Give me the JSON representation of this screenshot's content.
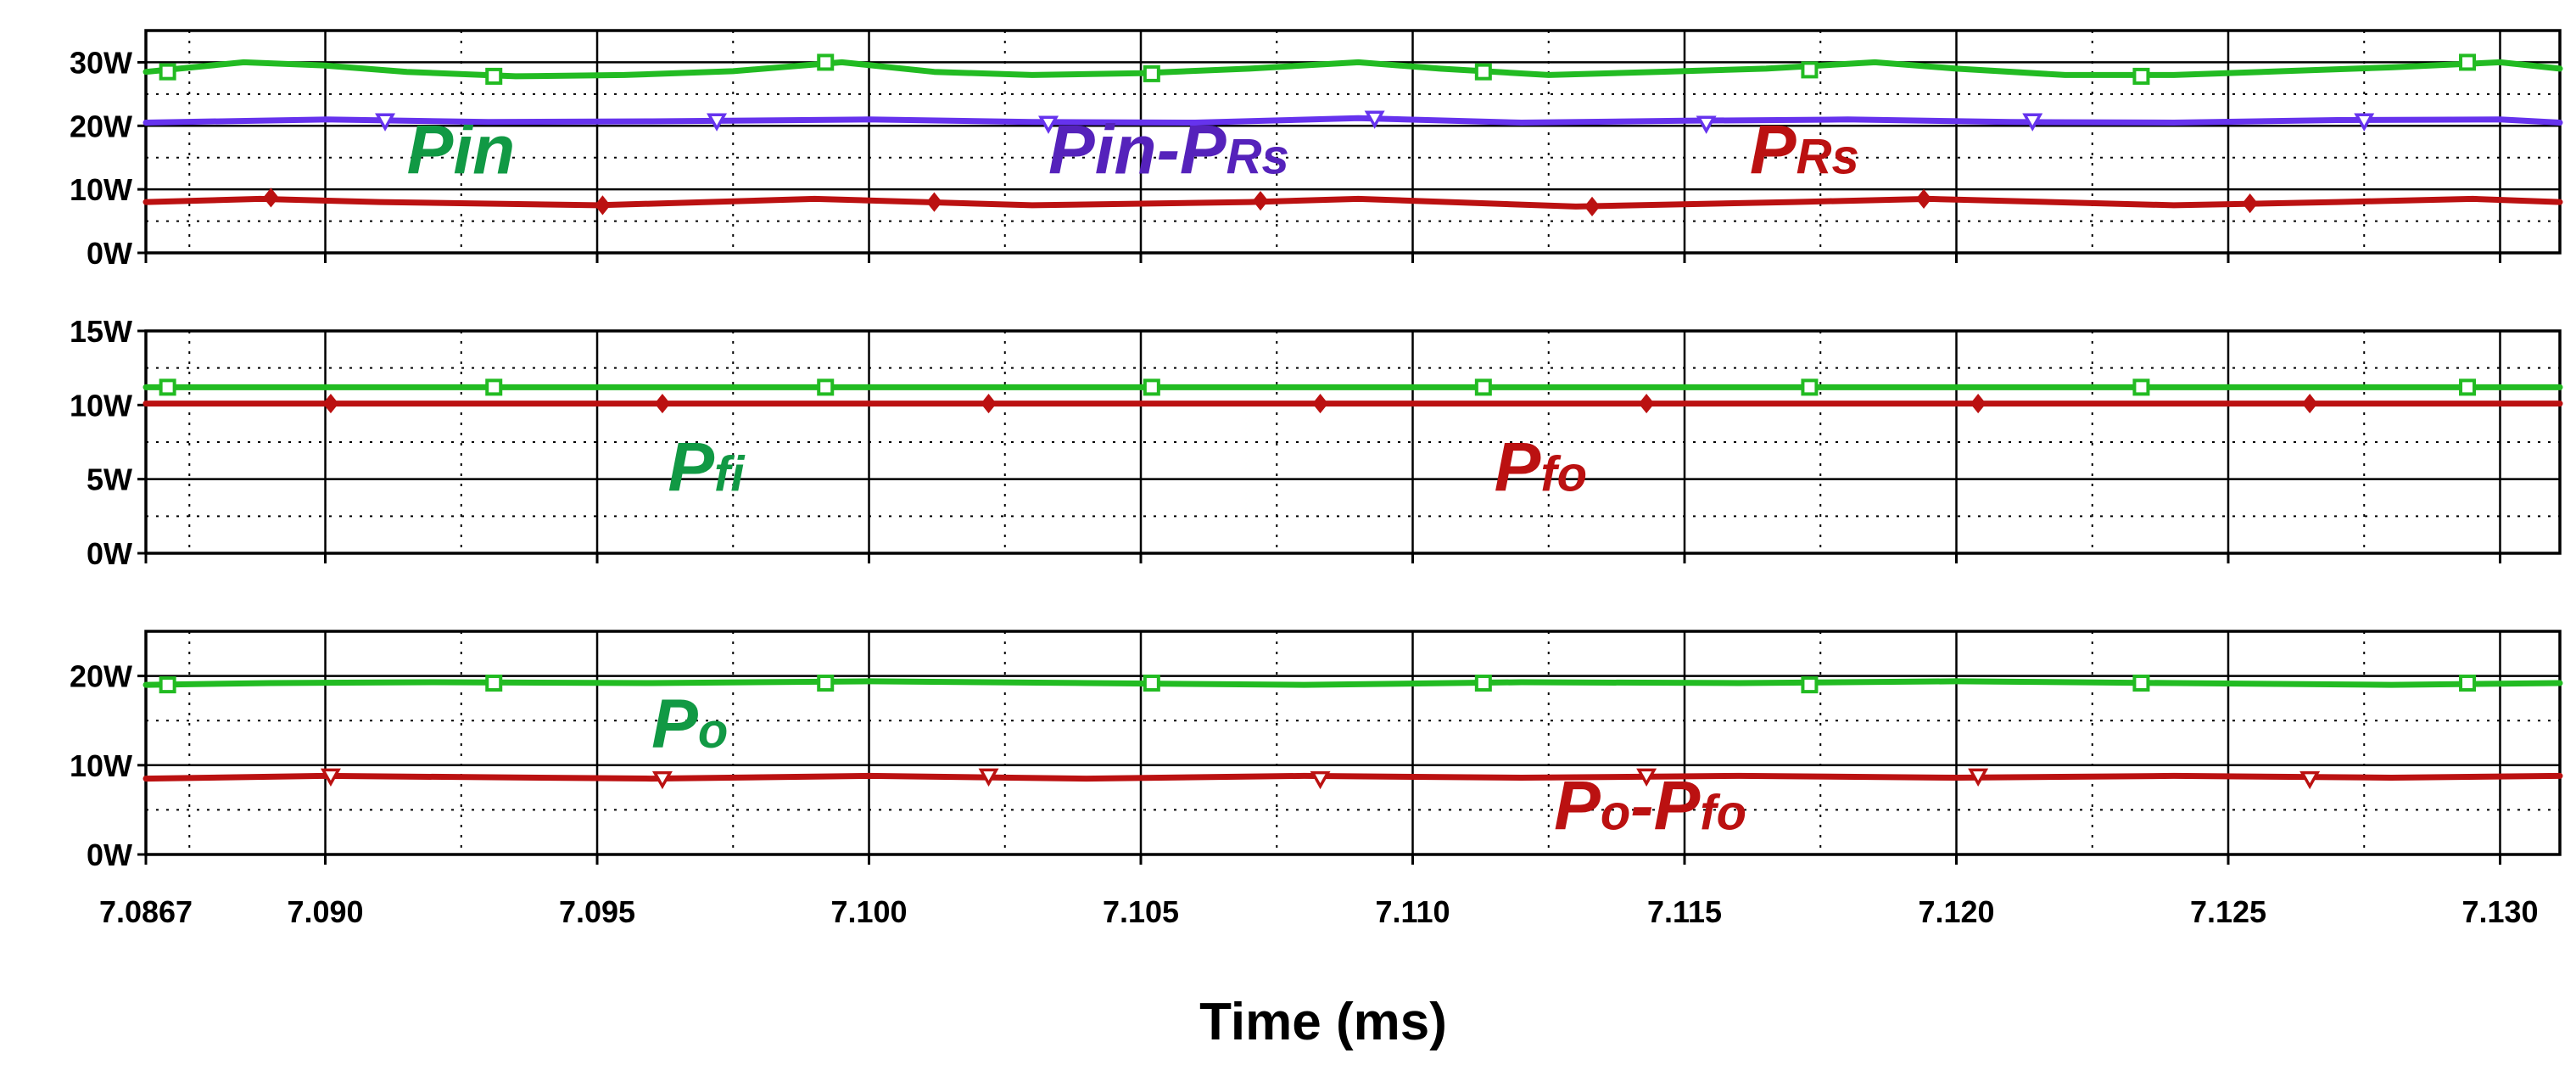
{
  "colors": {
    "green": "#22bb22",
    "purple": "#6633ee",
    "red": "#bb1111",
    "label_green": "#119944",
    "label_purple": "#5522bb",
    "label_red": "#bb1111"
  },
  "chart_data": {
    "type": "line",
    "xlabel": "Time (ms)",
    "xlim": [
      7.0867,
      7.1311
    ],
    "x_ticks": [
      {
        "value": 7.0867,
        "label": "7.0867"
      },
      {
        "value": 7.09,
        "label": "7.090"
      },
      {
        "value": 7.095,
        "label": "7.095"
      },
      {
        "value": 7.1,
        "label": "7.100"
      },
      {
        "value": 7.105,
        "label": "7.105"
      },
      {
        "value": 7.11,
        "label": "7.110"
      },
      {
        "value": 7.115,
        "label": "7.115"
      },
      {
        "value": 7.12,
        "label": "7.120"
      },
      {
        "value": 7.125,
        "label": "7.125"
      },
      {
        "value": 7.13,
        "label": "7.130"
      }
    ],
    "grid": true,
    "panels": [
      {
        "id": "top",
        "ylim": [
          0,
          35
        ],
        "y_ticks": [
          {
            "value": 0,
            "label": "0W"
          },
          {
            "value": 10,
            "label": "10W"
          },
          {
            "value": 20,
            "label": "20W"
          },
          {
            "value": 30,
            "label": "30W"
          }
        ],
        "series": [
          {
            "name": "Pin",
            "label_parts": [
              {
                "t": "Pin",
                "sub": false
              }
            ],
            "color": "green",
            "marker": "square",
            "label_color": "label_green",
            "label_pos": [
              7.0915,
              12.5
            ],
            "x": [
              7.0867,
              7.0885,
              7.09,
              7.0915,
              7.0935,
              7.0955,
              7.0975,
              7.0995,
              7.1012,
              7.103,
              7.105,
              7.107,
              7.109,
              7.1105,
              7.1125,
              7.1145,
              7.1165,
              7.1185,
              7.12,
              7.122,
              7.124,
              7.126,
              7.128,
              7.13,
              7.1311
            ],
            "y": [
              28.5,
              30.0,
              29.5,
              28.5,
              27.8,
              28.0,
              28.6,
              30.0,
              28.5,
              28.0,
              28.3,
              29.0,
              30.0,
              29.0,
              28.0,
              28.5,
              29.0,
              30.0,
              29.0,
              28.0,
              28.0,
              28.6,
              29.2,
              30.0,
              29.0
            ],
            "markers_x": [
              7.0871,
              7.0931,
              7.0992,
              7.1052,
              7.1113,
              7.1173,
              7.1234,
              7.1294
            ],
            "markers_y": [
              28.5,
              27.8,
              30.0,
              28.2,
              28.5,
              28.8,
              27.8,
              30.0
            ]
          },
          {
            "name": "Pin-PRs",
            "label_parts": [
              {
                "t": "Pin-P",
                "sub": false
              },
              {
                "t": "Rs",
                "sub": true
              }
            ],
            "color": "purple",
            "marker": "triangle-down",
            "label_color": "label_purple",
            "label_pos": [
              7.1033,
              12.5
            ],
            "x": [
              7.0867,
              7.09,
              7.093,
              7.096,
              7.1,
              7.103,
              7.106,
              7.109,
              7.112,
              7.115,
              7.118,
              7.121,
              7.124,
              7.127,
              7.13,
              7.1311
            ],
            "y": [
              20.5,
              21.0,
              20.6,
              20.7,
              21.0,
              20.6,
              20.5,
              21.2,
              20.5,
              20.8,
              21.0,
              20.6,
              20.5,
              20.9,
              21.0,
              20.5
            ],
            "markers_x": [
              7.0911,
              7.0972,
              7.1033,
              7.1093,
              7.1154,
              7.1214,
              7.1275
            ],
            "markers_y": [
              20.8,
              20.8,
              20.4,
              21.2,
              20.4,
              20.8,
              20.8
            ]
          },
          {
            "name": "PRs",
            "label_parts": [
              {
                "t": "P",
                "sub": false
              },
              {
                "t": "Rs",
                "sub": true
              }
            ],
            "color": "red",
            "marker": "diamond",
            "label_color": "label_red",
            "label_pos": [
              7.1162,
              12.5
            ],
            "x": [
              7.0867,
              7.0888,
              7.091,
              7.095,
              7.099,
              7.103,
              7.107,
              7.109,
              7.113,
              7.117,
              7.1195,
              7.124,
              7.127,
              7.1295,
              7.1311
            ],
            "y": [
              8.0,
              8.5,
              8.0,
              7.5,
              8.5,
              7.5,
              8.0,
              8.5,
              7.3,
              8.0,
              8.5,
              7.5,
              8.0,
              8.5,
              8.0
            ],
            "markers_x": [
              7.089,
              7.0951,
              7.1012,
              7.1072,
              7.1133,
              7.1194,
              7.1254
            ],
            "markers_y": [
              8.7,
              7.5,
              8.0,
              8.2,
              7.3,
              8.5,
              7.8
            ]
          }
        ]
      },
      {
        "id": "middle",
        "ylim": [
          0,
          15
        ],
        "y_ticks": [
          {
            "value": 0,
            "label": "0W"
          },
          {
            "value": 5,
            "label": "5W"
          },
          {
            "value": 10,
            "label": "10W"
          },
          {
            "value": 15,
            "label": "15W"
          }
        ],
        "series": [
          {
            "name": "Pfi",
            "label_parts": [
              {
                "t": "P",
                "sub": false
              },
              {
                "t": "fi",
                "sub": true
              }
            ],
            "color": "green",
            "marker": "square",
            "label_color": "label_green",
            "label_pos": [
              7.0963,
              4.2
            ],
            "x": [
              7.0867,
              7.1311
            ],
            "y": [
              11.2,
              11.2
            ],
            "markers_x": [
              7.0871,
              7.0931,
              7.0992,
              7.1052,
              7.1113,
              7.1173,
              7.1234,
              7.1294
            ],
            "markers_y": [
              11.2,
              11.2,
              11.2,
              11.2,
              11.2,
              11.2,
              11.2,
              11.2
            ]
          },
          {
            "name": "Pfo",
            "label_parts": [
              {
                "t": "P",
                "sub": false
              },
              {
                "t": "fo",
                "sub": true
              }
            ],
            "color": "red",
            "marker": "diamond",
            "label_color": "label_red",
            "label_pos": [
              7.1115,
              4.2
            ],
            "x": [
              7.0867,
              7.1311
            ],
            "y": [
              10.1,
              10.1
            ],
            "markers_x": [
              7.0901,
              7.0962,
              7.1022,
              7.1083,
              7.1143,
              7.1204,
              7.1265
            ],
            "markers_y": [
              10.1,
              10.1,
              10.1,
              10.1,
              10.1,
              10.1,
              10.1
            ]
          }
        ]
      },
      {
        "id": "bottom",
        "ylim": [
          0,
          25
        ],
        "y_ticks": [
          {
            "value": 0,
            "label": "0W"
          },
          {
            "value": 10,
            "label": "10W"
          },
          {
            "value": 20,
            "label": "20W"
          }
        ],
        "series": [
          {
            "name": "Po",
            "label_parts": [
              {
                "t": "P",
                "sub": false
              },
              {
                "t": "o",
                "sub": true
              }
            ],
            "color": "green",
            "marker": "square",
            "label_color": "label_green",
            "label_pos": [
              7.096,
              12.0
            ],
            "x": [
              7.0867,
              7.089,
              7.092,
              7.096,
              7.1,
              7.104,
              7.108,
              7.112,
              7.116,
              7.12,
              7.124,
              7.128,
              7.1311
            ],
            "y": [
              19.0,
              19.2,
              19.3,
              19.2,
              19.4,
              19.2,
              19.0,
              19.3,
              19.2,
              19.4,
              19.2,
              19.0,
              19.2
            ],
            "markers_x": [
              7.0871,
              7.0931,
              7.0992,
              7.1052,
              7.1113,
              7.1173,
              7.1234,
              7.1294
            ],
            "markers_y": [
              19.0,
              19.2,
              19.2,
              19.2,
              19.2,
              19.0,
              19.2,
              19.2
            ]
          },
          {
            "name": "Po-Pfo",
            "label_parts": [
              {
                "t": "P",
                "sub": false
              },
              {
                "t": "o",
                "sub": true
              },
              {
                "t": "-P",
                "sub": false
              },
              {
                "t": "fo",
                "sub": true
              }
            ],
            "color": "red",
            "marker": "triangle-down",
            "label_color": "label_red",
            "label_pos": [
              7.1126,
              2.8
            ],
            "x": [
              7.0867,
              7.09,
              7.096,
              7.1,
              7.104,
              7.108,
              7.112,
              7.116,
              7.12,
              7.124,
              7.128,
              7.1311
            ],
            "y": [
              8.5,
              8.8,
              8.5,
              8.8,
              8.5,
              8.8,
              8.6,
              8.8,
              8.6,
              8.8,
              8.6,
              8.8
            ],
            "markers_x": [
              7.0901,
              7.0962,
              7.1022,
              7.1083,
              7.1143,
              7.1204,
              7.1265
            ],
            "markers_y": [
              8.8,
              8.5,
              8.8,
              8.5,
              8.8,
              8.8,
              8.5
            ]
          }
        ]
      }
    ]
  }
}
